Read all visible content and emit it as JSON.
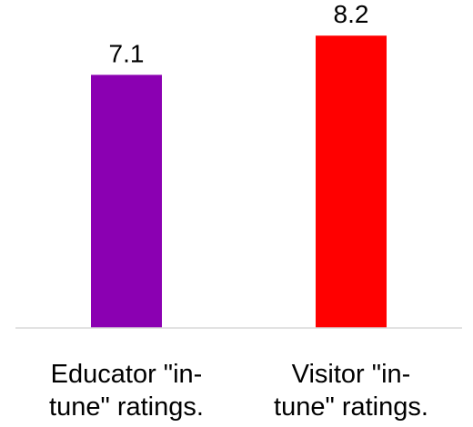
{
  "chart_data": {
    "type": "bar",
    "categories": [
      [
        "Educator \"in-",
        "tune\" ratings."
      ],
      [
        "Visitor \"in-",
        "tune\" ratings."
      ]
    ],
    "values": [
      7.1,
      8.2
    ],
    "value_labels": [
      "7.1",
      "8.2"
    ],
    "colors": [
      "#8B00B2",
      "#FF0000"
    ],
    "title": "",
    "xlabel": "",
    "ylabel": "",
    "ylim": [
      0,
      9.2
    ],
    "grid": false,
    "legend": "none",
    "axis_color": "#d9d9d9"
  }
}
